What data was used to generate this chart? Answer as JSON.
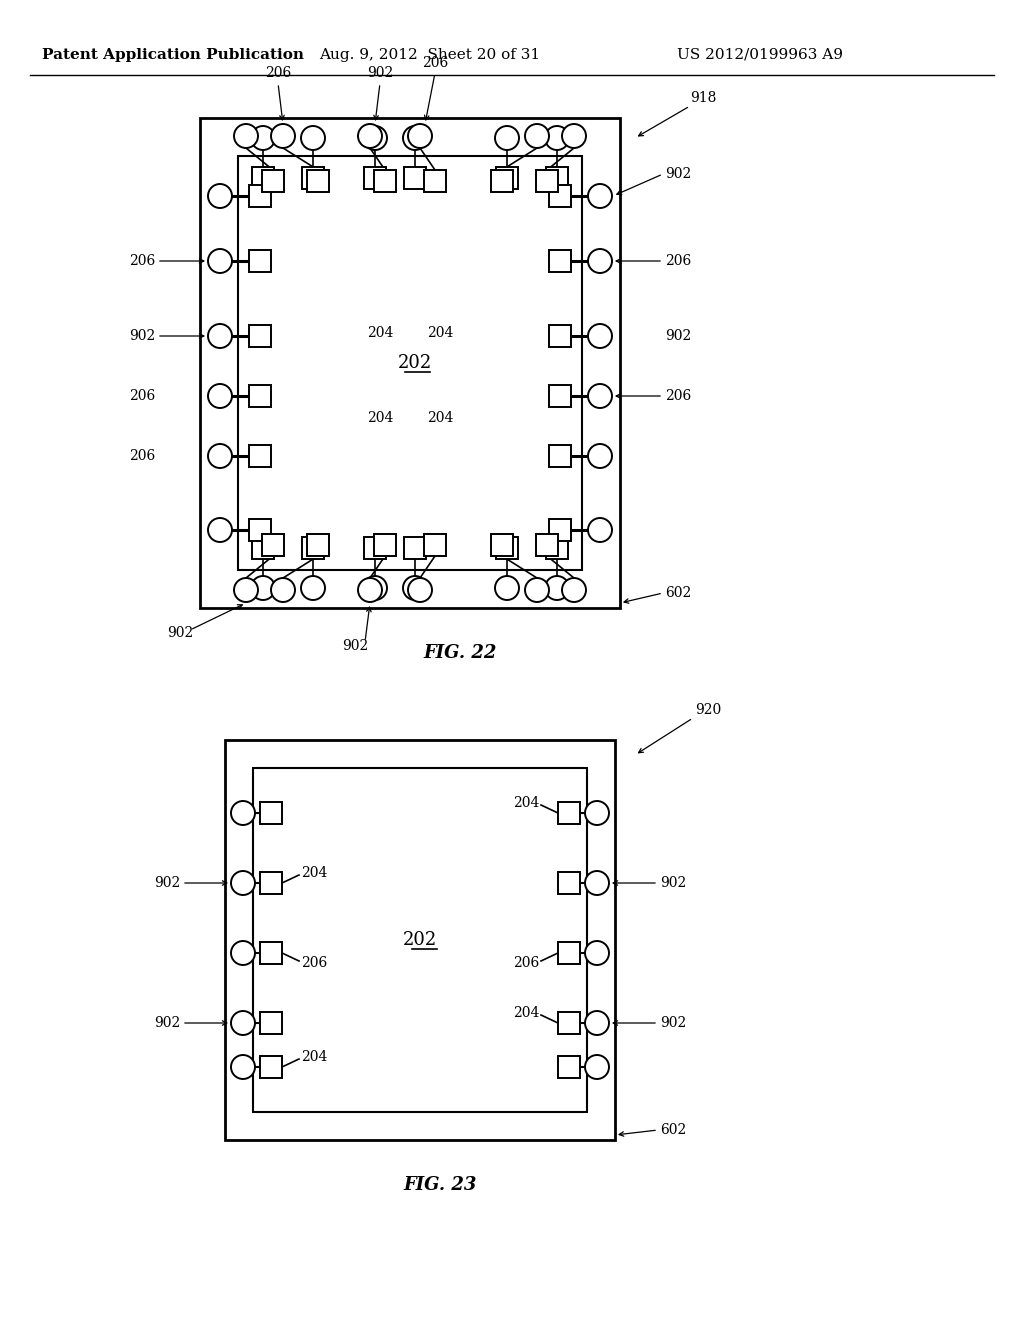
{
  "bg_color": "#ffffff",
  "header_left": "Patent Application Publication",
  "header_mid": "Aug. 9, 2012  Sheet 20 of 31",
  "header_right": "US 2012/0199963 A9",
  "fig22_label": "FIG. 22",
  "fig23_label": "FIG. 23"
}
